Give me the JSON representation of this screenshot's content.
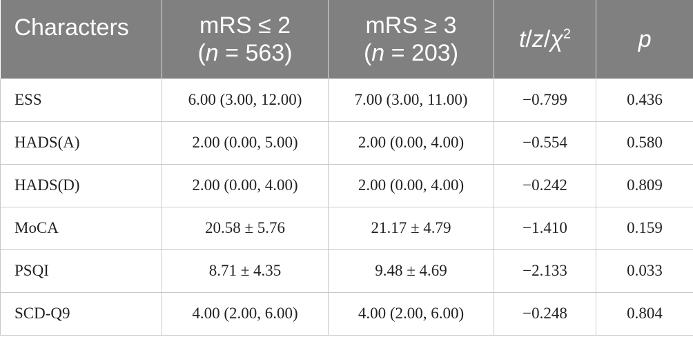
{
  "header": {
    "characters": "Characters",
    "group1_line1": "mRS ≤ 2",
    "group1_n_var": "n",
    "group1_n_rest": " = 563)",
    "group2_line1": "mRS ≥ 3",
    "group2_n_var": "n",
    "group2_n_rest": " = 203)",
    "stat_t": "t",
    "stat_z": "z",
    "stat_chi": "χ",
    "stat_sup": "2",
    "p": "p"
  },
  "rows": [
    {
      "name": "ESS",
      "g1": "6.00 (3.00, 12.00)",
      "g2": "7.00 (3.00, 11.00)",
      "stat": "−0.799",
      "p": "0.436"
    },
    {
      "name": "HADS(A)",
      "g1": "2.00 (0.00, 5.00)",
      "g2": "2.00 (0.00, 4.00)",
      "stat": "−0.554",
      "p": "0.580"
    },
    {
      "name": "HADS(D)",
      "g1": "2.00 (0.00, 4.00)",
      "g2": "2.00 (0.00, 4.00)",
      "stat": "−0.242",
      "p": "0.809"
    },
    {
      "name": "MoCA",
      "g1": "20.58 ± 5.76",
      "g2": "21.17 ± 4.79",
      "stat": "−1.410",
      "p": "0.159"
    },
    {
      "name": "PSQI",
      "g1": "8.71 ± 4.35",
      "g2": "9.48 ± 4.69",
      "stat": "−2.133",
      "p": "0.033"
    },
    {
      "name": "SCD-Q9",
      "g1": "4.00 (2.00, 6.00)",
      "g2": "4.00 (2.00, 6.00)",
      "stat": "−0.248",
      "p": "0.804"
    }
  ]
}
